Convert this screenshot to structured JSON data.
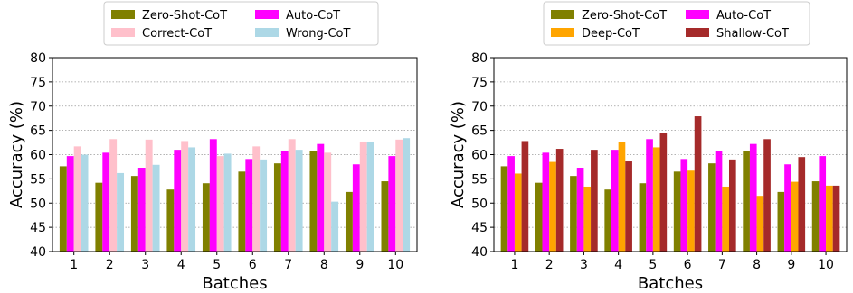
{
  "chart_data": [
    {
      "type": "bar",
      "title": "",
      "xlabel": "Batches",
      "ylabel": "Accuracy (%)",
      "ylim": [
        40,
        80
      ],
      "yticks": [
        40,
        45,
        50,
        55,
        60,
        65,
        70,
        75,
        80
      ],
      "categories": [
        "1",
        "2",
        "3",
        "4",
        "5",
        "6",
        "7",
        "8",
        "9",
        "10"
      ],
      "grid": "horizontal dotted",
      "legend_position": "top-center (above plot, 2 columns)",
      "series": [
        {
          "name": "Zero-Shot-CoT",
          "color": "#808000",
          "values": [
            57.6,
            54.2,
            55.6,
            52.8,
            54.1,
            56.5,
            58.2,
            60.8,
            52.3,
            54.5
          ]
        },
        {
          "name": "Auto-CoT",
          "color": "#ff00ff",
          "values": [
            59.7,
            60.4,
            57.3,
            61.0,
            63.2,
            59.1,
            60.8,
            62.2,
            58.0,
            59.7
          ]
        },
        {
          "name": "Correct-CoT",
          "color": "#ffc0cb",
          "values": [
            61.7,
            63.2,
            63.1,
            62.8,
            59.7,
            61.7,
            63.2,
            60.4,
            62.7,
            63.1
          ]
        },
        {
          "name": "Wrong-CoT",
          "color": "#add8e6",
          "values": [
            60.0,
            56.2,
            57.9,
            61.5,
            60.2,
            59.0,
            61.0,
            50.3,
            62.7,
            63.4
          ]
        }
      ]
    },
    {
      "type": "bar",
      "title": "",
      "xlabel": "Batches",
      "ylabel": "Accuracy (%)",
      "ylim": [
        40,
        80
      ],
      "yticks": [
        40,
        45,
        50,
        55,
        60,
        65,
        70,
        75,
        80
      ],
      "categories": [
        "1",
        "2",
        "3",
        "4",
        "5",
        "6",
        "7",
        "8",
        "9",
        "10"
      ],
      "grid": "horizontal dotted",
      "legend_position": "top-center (above plot, 2 columns)",
      "series": [
        {
          "name": "Zero-Shot-CoT",
          "color": "#808000",
          "values": [
            57.6,
            54.2,
            55.6,
            52.8,
            54.1,
            56.5,
            58.2,
            60.8,
            52.3,
            54.5
          ]
        },
        {
          "name": "Auto-CoT",
          "color": "#ff00ff",
          "values": [
            59.7,
            60.4,
            57.3,
            61.0,
            63.2,
            59.1,
            60.8,
            62.2,
            58.0,
            59.7
          ]
        },
        {
          "name": "Deep-CoT",
          "color": "#ffa500",
          "values": [
            56.1,
            58.5,
            53.4,
            62.6,
            61.5,
            56.7,
            53.4,
            51.5,
            54.4,
            53.6
          ]
        },
        {
          "name": "Shallow-CoT",
          "color": "#a52a2a",
          "values": [
            62.8,
            61.2,
            61.0,
            58.6,
            64.4,
            67.9,
            59.0,
            63.2,
            59.5,
            53.6
          ]
        }
      ]
    }
  ]
}
